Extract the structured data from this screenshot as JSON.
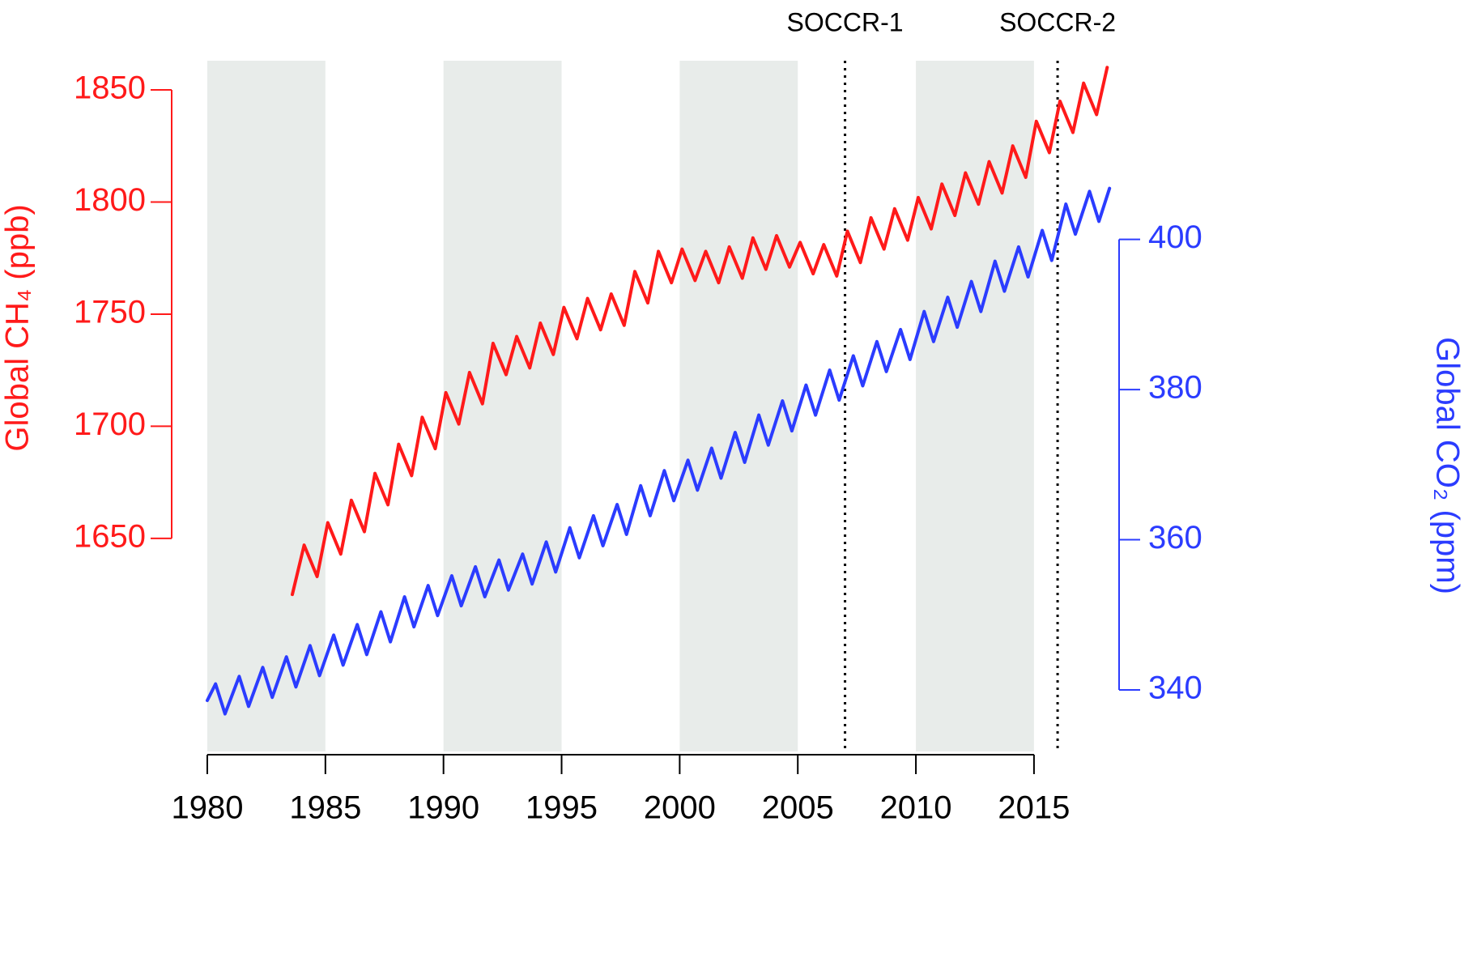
{
  "chart_data": {
    "type": "line",
    "xlim": [
      1980,
      2018.5
    ],
    "xticks": [
      1980,
      1985,
      1990,
      1995,
      2000,
      2005,
      2010,
      2015
    ],
    "ylim": [
      1555,
      1863
    ],
    "yticks": [
      1650,
      1700,
      1750,
      1800,
      1850
    ],
    "y2lim": [
      331.8,
      423.8
    ],
    "y2ticks": [
      340,
      360,
      380,
      400
    ],
    "y_label": "Global CH₄ (ppb)",
    "y2_label": "Global CO₂ (ppm)",
    "shaded_spans": [
      [
        1980,
        1985
      ],
      [
        1990,
        1995
      ],
      [
        2000,
        2005
      ],
      [
        2010,
        2015
      ]
    ],
    "shade_color": "#e8ecea",
    "annotations": [
      {
        "label": "SOCCR-1",
        "x": 2007
      },
      {
        "label": "SOCCR-2",
        "x": 2016
      }
    ],
    "series": [
      {
        "color": "#ff1a1a",
        "axis": "y",
        "x": [
          1983.6,
          1984.1,
          1984.65,
          1985.1,
          1985.65,
          1986.1,
          1986.65,
          1987.1,
          1987.65,
          1988.1,
          1988.65,
          1989.1,
          1989.65,
          1990.1,
          1990.65,
          1991.1,
          1991.65,
          1992.1,
          1992.65,
          1993.1,
          1993.65,
          1994.1,
          1994.65,
          1995.1,
          1995.65,
          1996.1,
          1996.65,
          1997.1,
          1997.65,
          1998.1,
          1998.65,
          1999.1,
          1999.65,
          2000.1,
          2000.65,
          2001.1,
          2001.65,
          2002.1,
          2002.65,
          2003.1,
          2003.65,
          2004.1,
          2004.65,
          2005.1,
          2005.65,
          2006.1,
          2006.65,
          2007.1,
          2007.65,
          2008.1,
          2008.65,
          2009.1,
          2009.65,
          2010.1,
          2010.65,
          2011.1,
          2011.65,
          2012.1,
          2012.65,
          2013.1,
          2013.65,
          2014.1,
          2014.65,
          2015.1,
          2015.65,
          2016.1,
          2016.65,
          2017.1,
          2017.65,
          2018.1
        ],
        "values": [
          1625,
          1647,
          1633,
          1657,
          1643,
          1667,
          1653,
          1679,
          1665,
          1692,
          1678,
          1704,
          1690,
          1715,
          1701,
          1724,
          1710,
          1737,
          1723,
          1740,
          1726,
          1746,
          1732,
          1753,
          1739,
          1757,
          1743,
          1759,
          1745,
          1769,
          1755,
          1778,
          1764,
          1779,
          1765,
          1778,
          1764,
          1780,
          1766,
          1784,
          1770,
          1785,
          1771,
          1782,
          1768,
          1781,
          1767,
          1787,
          1773,
          1793,
          1779,
          1797,
          1783,
          1802,
          1788,
          1808,
          1794,
          1813,
          1799,
          1818,
          1804,
          1825,
          1811,
          1836,
          1822,
          1845,
          1831,
          1853,
          1839,
          1860
        ]
      },
      {
        "color": "#2b3cff",
        "axis": "y2",
        "x": [
          1980,
          1980.35,
          1980.75,
          1981.35,
          1981.75,
          1982.35,
          1982.75,
          1983.35,
          1983.75,
          1984.35,
          1984.75,
          1985.35,
          1985.75,
          1986.35,
          1986.75,
          1987.35,
          1987.75,
          1988.35,
          1988.75,
          1989.35,
          1989.75,
          1990.35,
          1990.75,
          1991.35,
          1991.75,
          1992.35,
          1992.75,
          1993.35,
          1993.75,
          1994.35,
          1994.75,
          1995.35,
          1995.75,
          1996.35,
          1996.75,
          1997.35,
          1997.75,
          1998.35,
          1998.75,
          1999.35,
          1999.75,
          2000.35,
          2000.75,
          2001.35,
          2001.75,
          2002.35,
          2002.75,
          2003.35,
          2003.75,
          2004.35,
          2004.75,
          2005.35,
          2005.75,
          2006.35,
          2006.75,
          2007.35,
          2007.75,
          2008.35,
          2008.75,
          2009.35,
          2009.75,
          2010.35,
          2010.75,
          2011.35,
          2011.75,
          2012.35,
          2012.75,
          2013.35,
          2013.75,
          2014.35,
          2014.75,
          2015.35,
          2015.75,
          2016.35,
          2016.75,
          2017.35,
          2017.75,
          2018.2
        ],
        "values": [
          338.6,
          340.8,
          336.8,
          341.8,
          337.8,
          343.0,
          339.0,
          344.4,
          340.4,
          345.9,
          341.9,
          347.3,
          343.3,
          348.7,
          344.7,
          350.4,
          346.4,
          352.4,
          348.4,
          353.9,
          349.9,
          355.2,
          351.2,
          356.4,
          352.4,
          357.3,
          353.3,
          358.1,
          354.1,
          359.7,
          355.7,
          361.6,
          357.6,
          363.2,
          359.2,
          364.7,
          360.7,
          367.2,
          363.2,
          369.2,
          365.2,
          370.6,
          366.6,
          372.2,
          368.2,
          374.3,
          370.3,
          376.6,
          372.6,
          378.5,
          374.5,
          380.6,
          376.6,
          382.6,
          378.6,
          384.5,
          380.5,
          386.4,
          382.4,
          388.0,
          384.0,
          390.4,
          386.4,
          392.3,
          388.3,
          394.4,
          390.4,
          397.1,
          393.1,
          399.0,
          395.0,
          401.2,
          397.2,
          404.7,
          400.7,
          406.4,
          402.4,
          406.8
        ]
      }
    ]
  }
}
